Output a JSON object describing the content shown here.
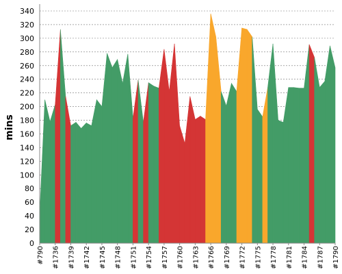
{
  "chart_data": {
    "type": "area",
    "ylabel": "mins",
    "xlabel": "",
    "ylim": [
      0,
      340
    ],
    "yticks": [
      0,
      20,
      40,
      60,
      80,
      100,
      120,
      140,
      160,
      180,
      200,
      220,
      240,
      260,
      280,
      300,
      320,
      340
    ],
    "grid": true,
    "x": [
      "#790",
      "#1734",
      "#1735",
      "#1736",
      "#1737",
      "#1738",
      "#1739",
      "#1740",
      "#1741",
      "#1742",
      "#1743",
      "#1744",
      "#1745",
      "#1746",
      "#1747",
      "#1748",
      "#1749",
      "#1750",
      "#1751",
      "#1752",
      "#1753",
      "#1754",
      "#1755",
      "#1756",
      "#1757",
      "#1758",
      "#1759",
      "#1760",
      "#1761",
      "#1762",
      "#1763",
      "#1764",
      "#1765",
      "#1766",
      "#1767",
      "#1768",
      "#1769",
      "#1770",
      "#1771",
      "#1772",
      "#1773",
      "#1774",
      "#1775",
      "#1776",
      "#1777",
      "#1778",
      "#1779",
      "#1780",
      "#1781",
      "#1782",
      "#1783",
      "#1784",
      "#1785",
      "#1786",
      "#1787",
      "#1788",
      "#1789",
      "#1790"
    ],
    "xtick_labels": [
      "#790",
      "#1736",
      "#1739",
      "#1742",
      "#1745",
      "#1748",
      "#1751",
      "#1754",
      "#1757",
      "#1760",
      "#1763",
      "#1766",
      "#1769",
      "#1772",
      "#1775",
      "#1778",
      "#1781",
      "#1784",
      "#1787",
      "#1790"
    ],
    "values": [
      42,
      210,
      178,
      203,
      313,
      215,
      172,
      177,
      168,
      176,
      172,
      210,
      200,
      278,
      257,
      269,
      234,
      277,
      183,
      239,
      177,
      235,
      230,
      227,
      284,
      222,
      292,
      172,
      146,
      215,
      181,
      186,
      181,
      336,
      302,
      222,
      201,
      234,
      222,
      315,
      313,
      302,
      196,
      185,
      228,
      292,
      180,
      177,
      228,
      228,
      227,
      227,
      291,
      272,
      228,
      237,
      289,
      257
    ],
    "status": [
      "success",
      "success",
      "success",
      "success",
      "failure",
      "success",
      "failure",
      "success",
      "success",
      "success",
      "success",
      "success",
      "success",
      "success",
      "success",
      "success",
      "success",
      "success",
      "success",
      "failure",
      "success",
      "failure",
      "success",
      "success",
      "failure",
      "failure",
      "failure",
      "failure",
      "failure",
      "failure",
      "failure",
      "failure",
      "failure",
      "unstable",
      "unstable",
      "unstable",
      "success",
      "success",
      "success",
      "unstable",
      "unstable",
      "unstable",
      "success",
      "success",
      "unstable",
      "success",
      "success",
      "success",
      "success",
      "success",
      "success",
      "success",
      "success",
      "failure",
      "success",
      "success",
      "success",
      "success"
    ],
    "colors": {
      "success": "#439c67",
      "failure": "#d43535",
      "unstable": "#f9a72c"
    }
  }
}
